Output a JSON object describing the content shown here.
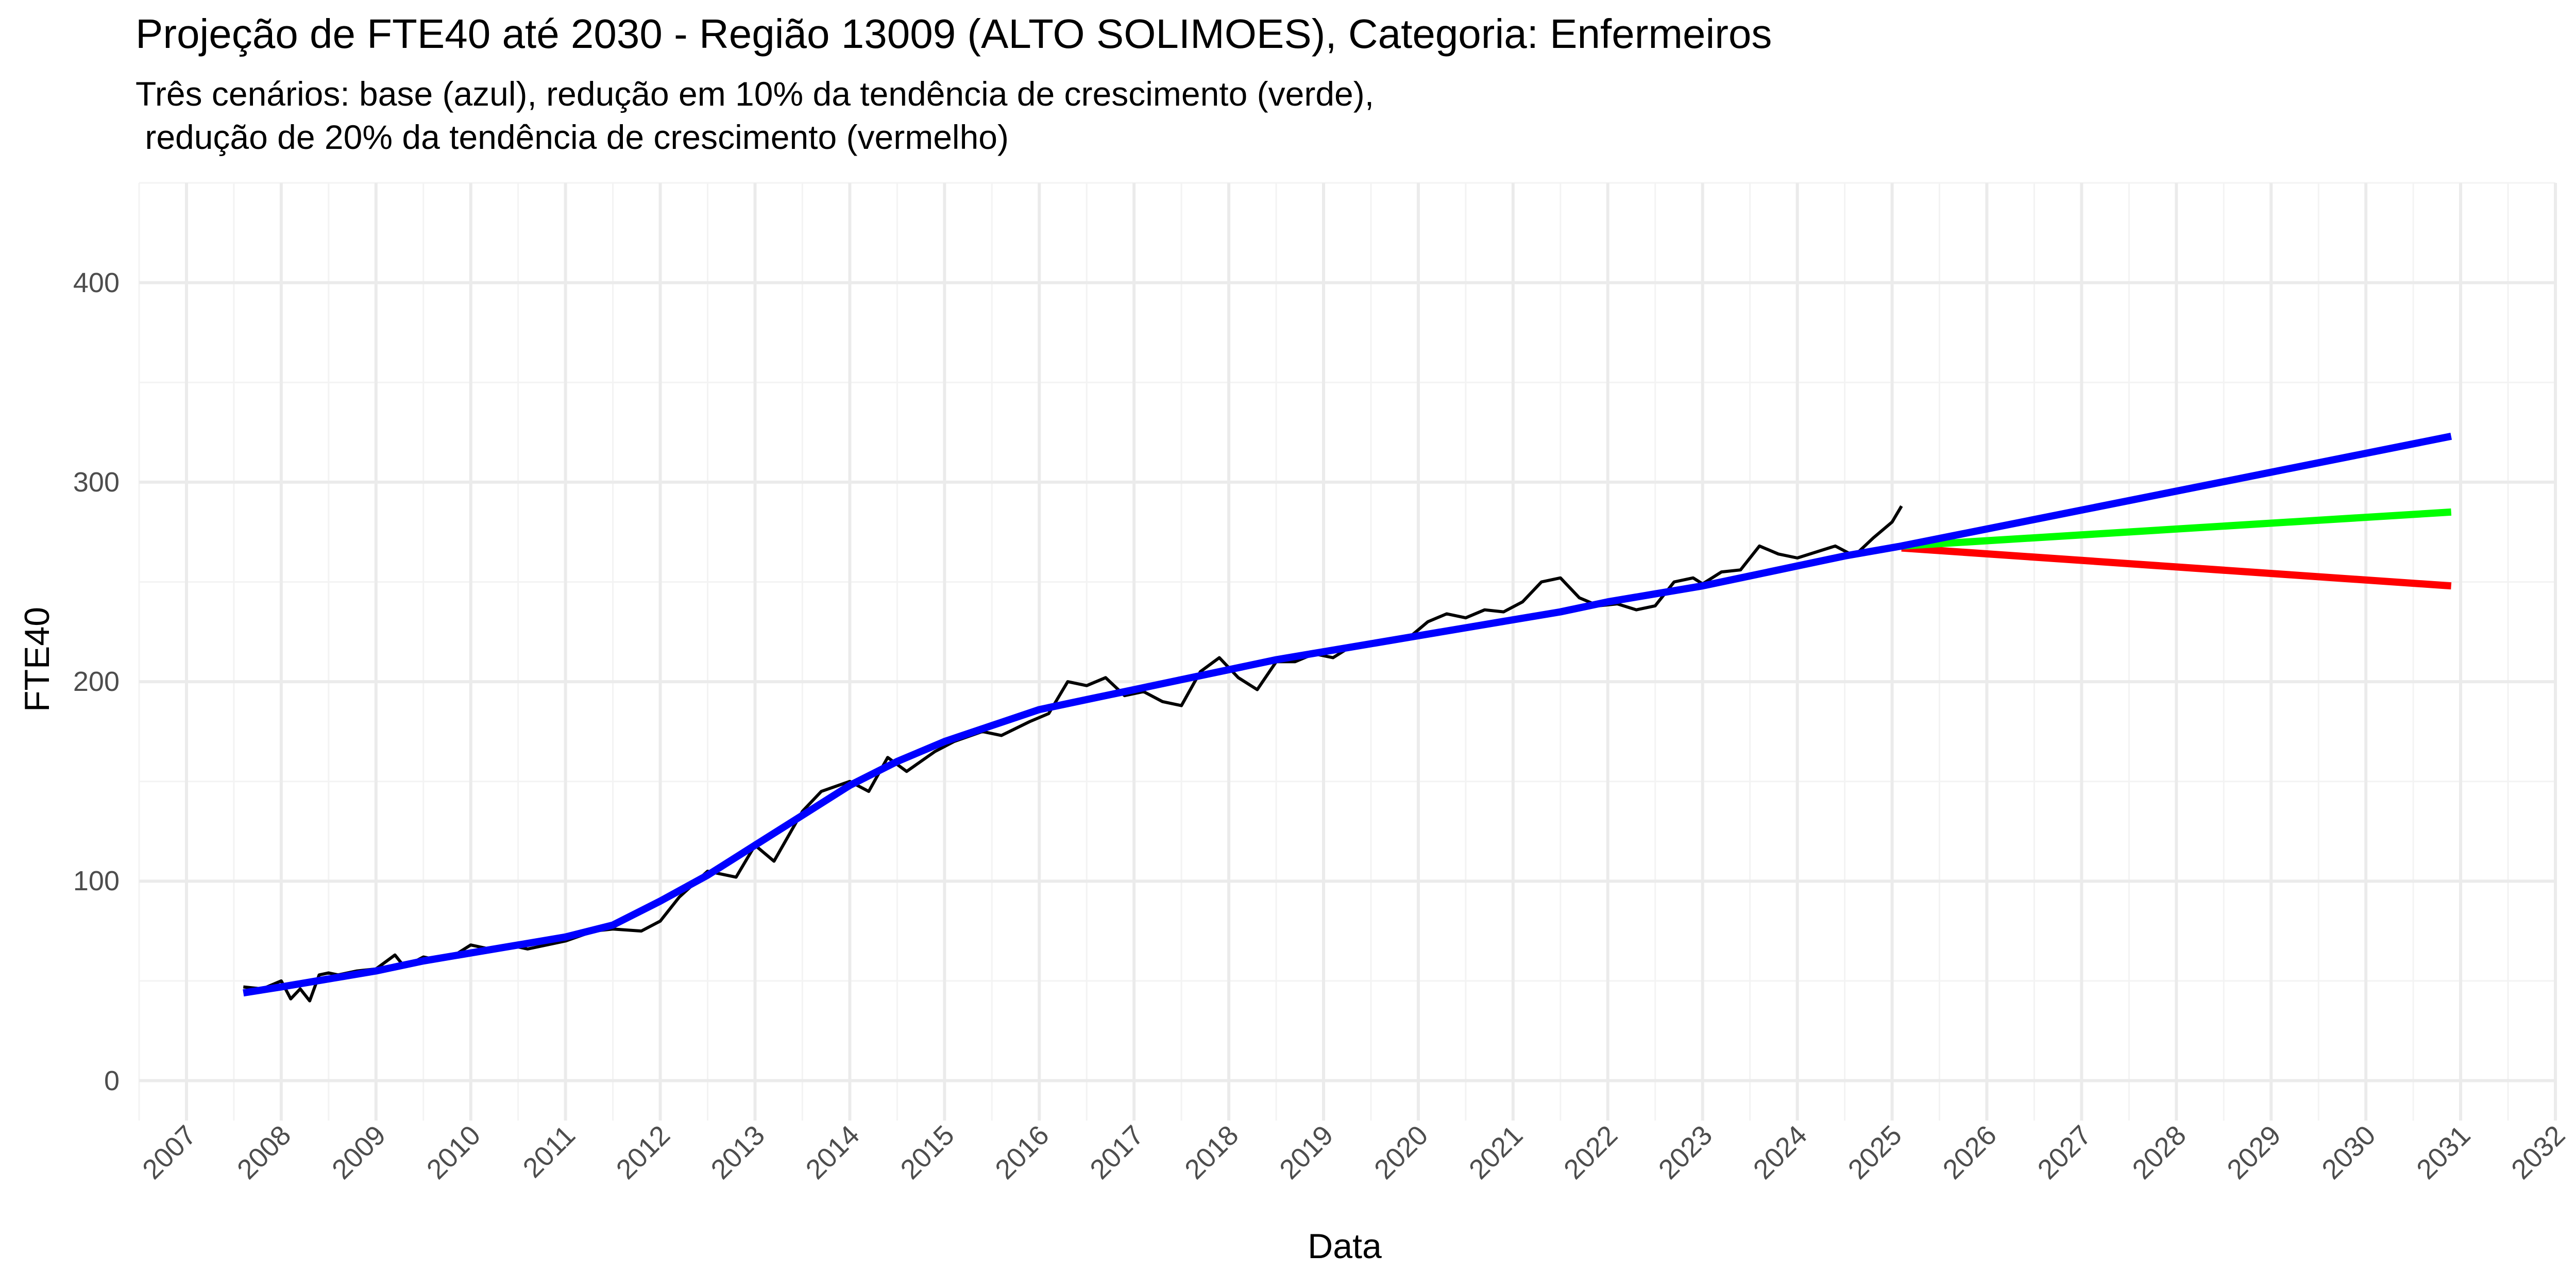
{
  "chart_data": {
    "type": "line",
    "title": "Projeção de FTE40 até 2030 - Região 13009 (ALTO SOLIMOES), Categoria: Enfermeiros",
    "subtitle": "Três cenários: base (azul), redução em 10% da tendência de crescimento (verde),\n redução de 20% da tendência de crescimento (vermelho)",
    "xlabel": "Data",
    "ylabel": "FTE40",
    "xlim": [
      2006.5,
      2032.0
    ],
    "ylim": [
      -20,
      450
    ],
    "yticks": [
      0,
      100,
      200,
      300,
      400
    ],
    "xticks": [
      "2007",
      "2008",
      "2009",
      "2010",
      "2011",
      "2012",
      "2013",
      "2014",
      "2015",
      "2016",
      "2017",
      "2018",
      "2019",
      "2020",
      "2021",
      "2022",
      "2023",
      "2024",
      "2025",
      "2026",
      "2027",
      "2028",
      "2029",
      "2030",
      "2031",
      "2032"
    ],
    "grid": true,
    "legend": "none",
    "series": [
      {
        "color": "#000000",
        "style": "observed",
        "x": [
          2007.6,
          2007.8,
          2008.0,
          2008.1,
          2008.2,
          2008.3,
          2008.4,
          2008.5,
          2008.6,
          2008.8,
          2009.0,
          2009.2,
          2009.3,
          2009.5,
          2009.6,
          2009.8,
          2010.0,
          2010.2,
          2010.3,
          2010.5,
          2010.6,
          2010.8,
          2011.0,
          2011.3,
          2011.5,
          2011.8,
          2012.0,
          2012.2,
          2012.5,
          2012.8,
          2013.0,
          2013.2,
          2013.5,
          2013.7,
          2014.0,
          2014.2,
          2014.4,
          2014.6,
          2014.9,
          2015.1,
          2015.4,
          2015.6,
          2015.9,
          2016.1,
          2016.3,
          2016.5,
          2016.7,
          2016.9,
          2017.1,
          2017.3,
          2017.5,
          2017.7,
          2017.9,
          2018.1,
          2018.3,
          2018.5,
          2018.7,
          2018.9,
          2019.1,
          2019.3,
          2019.5,
          2019.7,
          2019.9,
          2020.1,
          2020.3,
          2020.5,
          2020.7,
          2020.9,
          2021.1,
          2021.3,
          2021.5,
          2021.7,
          2021.9,
          2022.1,
          2022.3,
          2022.5,
          2022.7,
          2022.9,
          2023.0,
          2023.2,
          2023.4,
          2023.6,
          2023.8,
          2024.0,
          2024.2,
          2024.4,
          2024.6,
          2024.8,
          2025.0,
          2025.1
        ],
        "y": [
          47,
          46,
          50,
          41,
          46,
          40,
          53,
          54,
          53,
          55,
          56,
          63,
          57,
          62,
          61,
          62,
          68,
          66,
          66,
          67,
          66,
          68,
          70,
          75,
          76,
          75,
          80,
          92,
          105,
          102,
          118,
          110,
          135,
          145,
          150,
          145,
          162,
          155,
          165,
          170,
          175,
          173,
          180,
          184,
          200,
          198,
          202,
          193,
          195,
          190,
          188,
          205,
          212,
          202,
          196,
          210,
          210,
          214,
          212,
          218,
          220,
          220,
          222,
          230,
          234,
          232,
          236,
          235,
          240,
          250,
          252,
          242,
          238,
          239,
          236,
          238,
          250,
          252,
          249,
          255,
          256,
          268,
          264,
          262,
          265,
          268,
          263,
          272,
          280,
          288
        ]
      },
      {
        "color": "#0000ff",
        "style": "base",
        "x": [
          2007.6,
          2008.0,
          2008.5,
          2009.0,
          2009.5,
          2010.0,
          2010.5,
          2011.0,
          2011.5,
          2012.0,
          2012.5,
          2013.0,
          2013.5,
          2014.0,
          2014.5,
          2015.0,
          2015.5,
          2016.0,
          2016.5,
          2017.0,
          2017.5,
          2018.0,
          2018.5,
          2019.0,
          2019.5,
          2020.0,
          2020.5,
          2021.0,
          2021.5,
          2022.0,
          2022.5,
          2023.0,
          2023.5,
          2024.0,
          2024.5,
          2025.1,
          2030.9
        ],
        "y": [
          44,
          47,
          51,
          55,
          60,
          64,
          68,
          72,
          78,
          90,
          103,
          118,
          133,
          148,
          160,
          170,
          178,
          186,
          191,
          196,
          201,
          206,
          211,
          215,
          219,
          223,
          227,
          231,
          235,
          240,
          244,
          248,
          253,
          258,
          263,
          268,
          323
        ]
      },
      {
        "color": "#00ff00",
        "style": "reducao_10",
        "x": [
          2025.1,
          2030.9
        ],
        "y": [
          268,
          285
        ]
      },
      {
        "color": "#ff0000",
        "style": "reducao_20",
        "x": [
          2025.1,
          2030.9
        ],
        "y": [
          267,
          248
        ]
      }
    ]
  }
}
